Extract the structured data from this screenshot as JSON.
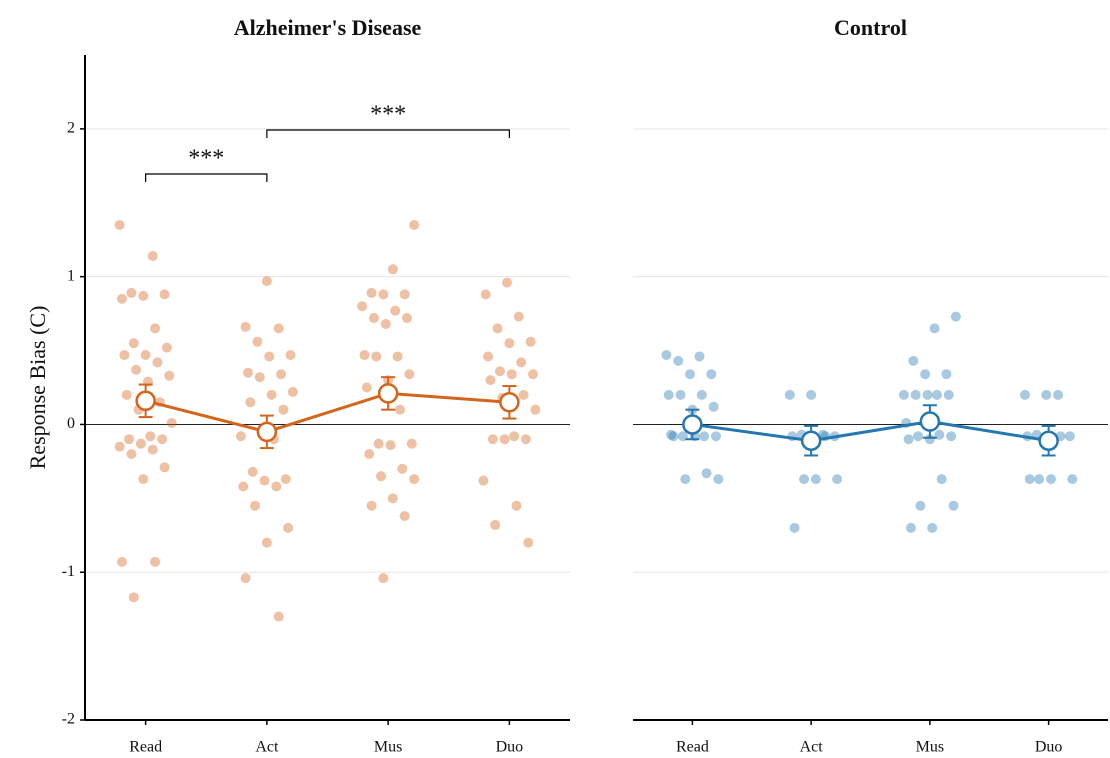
{
  "chart_data": [
    {
      "type": "dotline",
      "title": "Alzheimer's Disease",
      "ylabel": "Response Bias (C)",
      "categories": [
        "Read",
        "Act",
        "Mus",
        "Duo"
      ],
      "values": [
        0.16,
        -0.05,
        0.21,
        0.15
      ],
      "errors": [
        0.11,
        0.11,
        0.11,
        0.11
      ],
      "color": "#d4651c",
      "points": [
        [
          1.35,
          1.14,
          0.89,
          0.88,
          0.87,
          0.85,
          0.65,
          0.55,
          0.52,
          0.47,
          0.47,
          0.42,
          0.37,
          0.33,
          0.29,
          0.2,
          0.15,
          0.1,
          0.01,
          -0.08,
          -0.1,
          -0.1,
          -0.13,
          -0.15,
          -0.17,
          -0.2,
          -0.29,
          -0.37,
          -0.93,
          -0.93,
          -1.17
        ],
        [
          0.97,
          0.66,
          0.65,
          0.56,
          0.47,
          0.46,
          0.35,
          0.34,
          0.32,
          0.22,
          0.2,
          0.15,
          0.1,
          -0.06,
          -0.08,
          -0.1,
          -0.32,
          -0.37,
          -0.38,
          -0.42,
          -0.42,
          -0.55,
          -0.7,
          -0.8,
          -1.04,
          -1.3
        ],
        [
          1.35,
          1.05,
          0.89,
          0.88,
          0.88,
          0.8,
          0.77,
          0.72,
          0.72,
          0.68,
          0.47,
          0.46,
          0.46,
          0.34,
          0.3,
          0.25,
          0.1,
          -0.13,
          -0.13,
          -0.14,
          -0.2,
          -0.3,
          -0.35,
          -0.37,
          -0.5,
          -0.55,
          -0.62,
          -1.04
        ],
        [
          0.96,
          0.88,
          0.73,
          0.65,
          0.56,
          0.55,
          0.46,
          0.42,
          0.36,
          0.34,
          0.34,
          0.3,
          0.2,
          0.18,
          0.1,
          -0.08,
          -0.1,
          -0.1,
          -0.1,
          -0.38,
          -0.55,
          -0.68,
          -0.8
        ]
      ],
      "annotations": [
        {
          "text": "***",
          "from": "Read",
          "to": "Act"
        },
        {
          "text": "***",
          "from": "Act",
          "to": "Duo"
        }
      ],
      "ylim": [
        -2,
        2.5
      ],
      "yticks": [
        -2,
        -1,
        0,
        1,
        2
      ],
      "grid": true
    },
    {
      "type": "dotline",
      "title": "Control",
      "categories": [
        "Read",
        "Act",
        "Mus",
        "Duo"
      ],
      "values": [
        0.0,
        -0.11,
        0.02,
        -0.11
      ],
      "errors": [
        0.1,
        0.1,
        0.11,
        0.1
      ],
      "color": "#2577b0",
      "points": [
        [
          0.47,
          0.46,
          0.43,
          0.34,
          0.34,
          0.2,
          0.2,
          0.2,
          0.12,
          0.1,
          -0.07,
          -0.08,
          -0.08,
          -0.08,
          -0.08,
          -0.08,
          -0.33,
          -0.37,
          -0.37
        ],
        [
          0.2,
          0.2,
          -0.07,
          -0.07,
          -0.08,
          -0.08,
          -0.08,
          -0.08,
          -0.37,
          -0.37,
          -0.37,
          -0.7
        ],
        [
          0.73,
          0.65,
          0.43,
          0.34,
          0.34,
          0.2,
          0.2,
          0.2,
          0.2,
          0.2,
          0.01,
          -0.07,
          -0.08,
          -0.08,
          -0.1,
          -0.1,
          -0.37,
          -0.55,
          -0.55,
          -0.7,
          -0.7
        ],
        [
          0.2,
          0.2,
          0.2,
          -0.07,
          -0.08,
          -0.08,
          -0.08,
          -0.08,
          -0.37,
          -0.37,
          -0.37,
          -0.37
        ]
      ],
      "ylim": [
        -2,
        2.5
      ],
      "yticks": [
        -2,
        -1,
        0,
        1,
        2
      ],
      "grid": true
    }
  ]
}
